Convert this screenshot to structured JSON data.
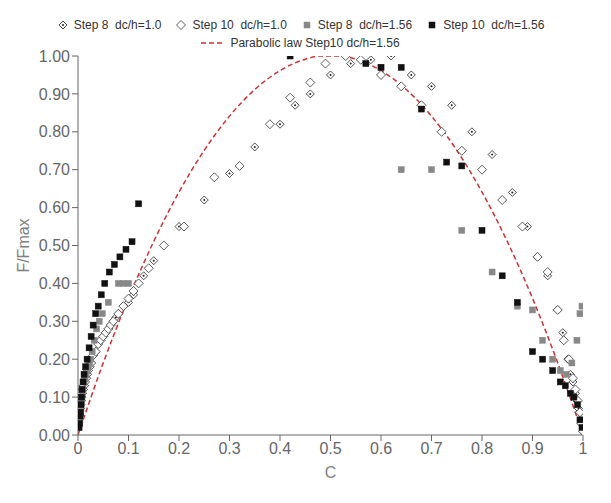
{
  "chart_data": {
    "type": "scatter",
    "xlabel": "C",
    "ylabel": "F/Fmax",
    "xlim": [
      0,
      1.0
    ],
    "ylim": [
      0,
      1.0
    ],
    "xticks": [
      0,
      0.1,
      0.2,
      0.3,
      0.4,
      0.5,
      0.6,
      0.7,
      0.8,
      0.9,
      1
    ],
    "yticks": [
      {
        "value": 0,
        "label": "0.00"
      },
      {
        "value": 0.1,
        "label": "0.10"
      },
      {
        "value": 0.2,
        "label": "0.20"
      },
      {
        "value": 0.3,
        "label": "0.30"
      },
      {
        "value": 0.4,
        "label": "0.40"
      },
      {
        "value": 0.5,
        "label": "0.50"
      },
      {
        "value": 0.6,
        "label": "0.60"
      },
      {
        "value": 0.7,
        "label": "0.70"
      },
      {
        "value": 0.8,
        "label": "0.80"
      },
      {
        "value": 0.9,
        "label": "0.90"
      },
      {
        "value": 1,
        "label": "1.00"
      }
    ],
    "grid": false,
    "legend": "top",
    "series": [
      {
        "name": "Step 8  dc/h=1.0",
        "type": "scatter",
        "marker": "open_diamond_dot",
        "color": "#222222",
        "x": [
          0.003,
          0.004,
          0.005,
          0.006,
          0.007,
          0.008,
          0.009,
          0.01,
          0.011,
          0.012,
          0.014,
          0.016,
          0.018,
          0.02,
          0.023,
          0.026,
          0.03,
          0.035,
          0.04,
          0.045,
          0.05,
          0.055,
          0.06,
          0.065,
          0.07,
          0.075,
          0.08,
          0.09,
          0.1,
          0.11,
          0.13,
          0.15,
          0.2,
          0.25,
          0.3,
          0.35,
          0.4,
          0.43,
          0.46,
          0.5,
          0.54,
          0.58,
          0.62,
          0.66,
          0.7,
          0.74,
          0.78,
          0.82,
          0.86,
          0.89,
          0.91,
          0.93,
          0.95,
          0.96,
          0.97,
          0.975,
          0.98,
          0.985,
          0.988,
          0.991,
          0.994,
          0.997,
          1.0
        ],
        "values": [
          0.05,
          0.07,
          0.08,
          0.09,
          0.1,
          0.11,
          0.12,
          0.12,
          0.13,
          0.13,
          0.14,
          0.15,
          0.16,
          0.17,
          0.18,
          0.19,
          0.21,
          0.22,
          0.24,
          0.25,
          0.26,
          0.27,
          0.28,
          0.29,
          0.3,
          0.31,
          0.32,
          0.34,
          0.35,
          0.37,
          0.42,
          0.46,
          0.55,
          0.62,
          0.69,
          0.76,
          0.82,
          0.87,
          0.9,
          0.95,
          0.98,
          0.99,
          1.0,
          0.95,
          0.92,
          0.87,
          0.8,
          0.74,
          0.64,
          0.55,
          0.47,
          0.42,
          0.33,
          0.27,
          0.2,
          0.16,
          0.14,
          0.11,
          0.09,
          0.07,
          0.06,
          0.03,
          0.01
        ]
      },
      {
        "name": "Step 10  dc/h=1.0",
        "type": "scatter",
        "marker": "open_diamond",
        "color": "#333333",
        "x": [
          0.003,
          0.004,
          0.005,
          0.006,
          0.007,
          0.008,
          0.009,
          0.01,
          0.011,
          0.012,
          0.014,
          0.016,
          0.018,
          0.02,
          0.023,
          0.026,
          0.03,
          0.035,
          0.04,
          0.045,
          0.05,
          0.055,
          0.06,
          0.065,
          0.07,
          0.08,
          0.09,
          0.1,
          0.11,
          0.12,
          0.14,
          0.17,
          0.21,
          0.27,
          0.32,
          0.38,
          0.42,
          0.46,
          0.49,
          0.53,
          0.56,
          0.6,
          0.64,
          0.68,
          0.72,
          0.76,
          0.8,
          0.84,
          0.88,
          0.91,
          0.93,
          0.95,
          0.962,
          0.972,
          0.98,
          0.985,
          0.99,
          0.994,
          0.997,
          1.0
        ],
        "values": [
          0.05,
          0.07,
          0.08,
          0.09,
          0.1,
          0.11,
          0.12,
          0.12,
          0.13,
          0.13,
          0.14,
          0.15,
          0.16,
          0.17,
          0.18,
          0.19,
          0.21,
          0.22,
          0.24,
          0.25,
          0.26,
          0.27,
          0.28,
          0.29,
          0.3,
          0.32,
          0.34,
          0.36,
          0.38,
          0.4,
          0.44,
          0.5,
          0.55,
          0.68,
          0.71,
          0.82,
          0.89,
          0.93,
          0.98,
          1.0,
          0.99,
          0.95,
          0.92,
          0.87,
          0.8,
          0.75,
          0.7,
          0.62,
          0.55,
          0.47,
          0.43,
          0.33,
          0.25,
          0.2,
          0.15,
          0.12,
          0.09,
          0.06,
          0.03,
          0.01
        ]
      },
      {
        "name": "Step 8  dc/h=1.56",
        "type": "scatter",
        "marker": "square",
        "color": "#888888",
        "x": [
          0.002,
          0.003,
          0.004,
          0.005,
          0.006,
          0.007,
          0.008,
          0.009,
          0.01,
          0.012,
          0.014,
          0.016,
          0.018,
          0.02,
          0.023,
          0.025,
          0.028,
          0.032,
          0.037,
          0.042,
          0.048,
          0.06,
          0.08,
          0.09,
          0.1,
          0.6,
          0.64,
          0.7,
          0.76,
          0.82,
          0.87,
          0.9,
          0.92,
          0.94,
          0.955,
          0.967,
          0.978,
          0.988,
          0.994,
          0.998
        ],
        "values": [
          0.02,
          0.03,
          0.04,
          0.05,
          0.07,
          0.09,
          0.1,
          0.11,
          0.12,
          0.14,
          0.15,
          0.16,
          0.17,
          0.18,
          0.19,
          0.2,
          0.22,
          0.25,
          0.28,
          0.3,
          0.32,
          0.35,
          0.4,
          0.4,
          0.4,
          0.97,
          0.7,
          0.7,
          0.54,
          0.43,
          0.34,
          0.33,
          0.25,
          0.2,
          0.17,
          0.16,
          0.19,
          0.25,
          0.32,
          0.34
        ]
      },
      {
        "name": "Step 10  dc/h=1.56",
        "type": "scatter",
        "marker": "square",
        "color": "#111111",
        "x": [
          0.002,
          0.003,
          0.004,
          0.005,
          0.006,
          0.007,
          0.008,
          0.01,
          0.012,
          0.015,
          0.018,
          0.022,
          0.026,
          0.03,
          0.035,
          0.04,
          0.046,
          0.053,
          0.062,
          0.072,
          0.083,
          0.095,
          0.107,
          0.12,
          0.42,
          0.57,
          0.6,
          0.64,
          0.68,
          0.73,
          0.76,
          0.8,
          0.84,
          0.87,
          0.9,
          0.92,
          0.94,
          0.955,
          0.965,
          0.975,
          0.982,
          0.989,
          0.994,
          0.998
        ],
        "values": [
          0.02,
          0.03,
          0.05,
          0.06,
          0.08,
          0.1,
          0.12,
          0.14,
          0.16,
          0.18,
          0.2,
          0.23,
          0.26,
          0.29,
          0.32,
          0.34,
          0.37,
          0.4,
          0.43,
          0.45,
          0.47,
          0.49,
          0.51,
          0.61,
          1.0,
          0.98,
          0.97,
          0.97,
          0.86,
          0.72,
          0.71,
          0.54,
          0.42,
          0.35,
          0.22,
          0.2,
          0.17,
          0.14,
          0.13,
          0.11,
          0.1,
          0.08,
          0.04,
          0.02
        ]
      },
      {
        "name": "Parabolic law Step10 dc/h=1.56",
        "type": "line",
        "line_style": "dashed",
        "color": "#cc3333",
        "x": [
          0,
          0.05,
          0.1,
          0.15,
          0.2,
          0.25,
          0.3,
          0.35,
          0.4,
          0.45,
          0.48,
          0.5,
          0.52,
          0.55,
          0.6,
          0.65,
          0.7,
          0.75,
          0.8,
          0.85,
          0.9,
          0.95,
          1
        ],
        "values": [
          0,
          0.1903,
          0.3606,
          0.5108,
          0.641,
          0.7512,
          0.8413,
          0.9115,
          0.9615,
          0.9916,
          1,
          1,
          1,
          0.9916,
          0.9615,
          0.9115,
          0.8413,
          0.7512,
          0.641,
          0.5108,
          0.3606,
          0.1903,
          0
        ]
      }
    ]
  }
}
